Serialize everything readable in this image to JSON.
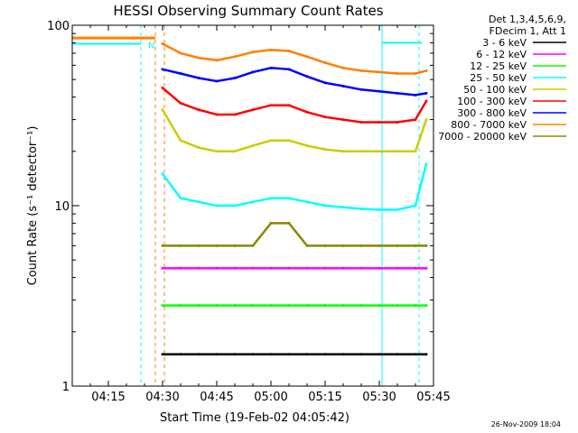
{
  "chart_data": {
    "type": "line",
    "title": "HESSI Observing Summary Count Rates",
    "xlabel": "Start Time (19-Feb-02 04:05:42)",
    "ylabel": "Count Rate (s⁻¹ detector⁻¹)",
    "y_scale": "log",
    "ylim": [
      1,
      100
    ],
    "xlim": [
      "04:05",
      "05:45"
    ],
    "x_ticks": [
      "04:15",
      "04:30",
      "04:45",
      "05:00",
      "05:15",
      "05:30",
      "05:45"
    ],
    "y_ticks": [
      "1",
      "10",
      "100"
    ],
    "legend_header": [
      "Det 1,3,4,5,6,9,",
      "FDecim 1, Att 1"
    ],
    "legend_position": "right",
    "x": [
      "04:30",
      "04:35",
      "04:40",
      "04:45",
      "04:50",
      "04:55",
      "05:00",
      "05:05",
      "05:10",
      "05:15",
      "05:20",
      "05:25",
      "05:30",
      "05:35",
      "05:40",
      "05:43"
    ],
    "series": [
      {
        "name": "3 - 6 keV",
        "color": "#000000",
        "values": [
          1.5,
          1.5,
          1.5,
          1.5,
          1.5,
          1.5,
          1.5,
          1.5,
          1.5,
          1.5,
          1.5,
          1.5,
          1.5,
          1.5,
          1.5,
          1.5
        ]
      },
      {
        "name": "6 - 12 keV",
        "color": "#ff00ff",
        "values": [
          4.5,
          4.5,
          4.5,
          4.5,
          4.5,
          4.5,
          4.5,
          4.5,
          4.5,
          4.5,
          4.5,
          4.5,
          4.5,
          4.5,
          4.5,
          4.5
        ]
      },
      {
        "name": "12 - 25 keV",
        "color": "#00ff00",
        "values": [
          2.8,
          2.8,
          2.8,
          2.8,
          2.8,
          2.8,
          2.8,
          2.8,
          2.8,
          2.8,
          2.8,
          2.8,
          2.8,
          2.8,
          2.8,
          2.8
        ]
      },
      {
        "name": "25 - 50 keV",
        "color": "#00ffff",
        "values": [
          15,
          11,
          10.5,
          10,
          10,
          10.5,
          11,
          11,
          10.5,
          10,
          9.8,
          9.6,
          9.5,
          9.5,
          10,
          17
        ]
      },
      {
        "name": "50 - 100 keV",
        "color": "#cccc00",
        "values": [
          34,
          23,
          21,
          20,
          20,
          21.5,
          23,
          23,
          21.5,
          20.5,
          20,
          20,
          20,
          20,
          20,
          30
        ]
      },
      {
        "name": "100 - 300 keV",
        "color": "#ff0000",
        "values": [
          45,
          37,
          34,
          32,
          32,
          34,
          36,
          36,
          33,
          31,
          30,
          29,
          29,
          29,
          30,
          38
        ]
      },
      {
        "name": "300 - 800 keV",
        "color": "#0000ff",
        "values": [
          57,
          54,
          51,
          49,
          51,
          55,
          58,
          57,
          52,
          48,
          46,
          44,
          43,
          42,
          41,
          42
        ]
      },
      {
        "name": "800 - 7000 keV",
        "color": "#ff8000",
        "values": [
          79,
          70,
          66,
          64,
          67,
          71,
          73,
          72,
          67,
          62,
          58,
          56,
          55,
          54,
          54,
          56
        ]
      },
      {
        "name": "7000 - 20000 keV",
        "color": "#888800",
        "values": [
          6,
          6,
          6,
          6,
          6,
          6,
          8,
          8,
          6,
          6,
          6,
          6,
          6,
          6,
          6,
          6
        ]
      }
    ],
    "overlay_labels": [
      "N"
    ],
    "grid": false
  },
  "footer": "26-Nov-2009 18:04"
}
